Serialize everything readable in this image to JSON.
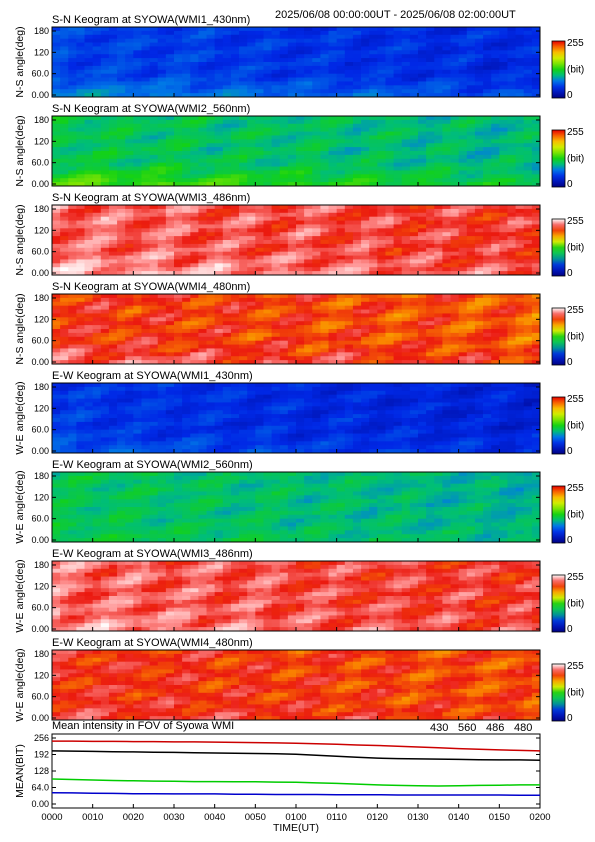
{
  "header": {
    "time_range": "2025/06/08 00:00:00UT - 2025/06/08 02:00:00UT"
  },
  "colorbar": {
    "max_label": "255",
    "unit_label": "(bit)",
    "min_label": "0"
  },
  "keograms": [
    {
      "title": "S-N Keogram at SYOWA(WMI1_430nm)",
      "ylabel": "N-S angle(deg)",
      "ramp": "rainbow",
      "base": 0.22,
      "spread": 0.05,
      "low_boost": 0.12
    },
    {
      "title": "S-N Keogram at SYOWA(WMI2_560nm)",
      "ylabel": "N-S angle(deg)",
      "ramp": "rainbow",
      "base": 0.44,
      "spread": 0.06,
      "low_boost": 0.14
    },
    {
      "title": "S-N Keogram at SYOWA(WMI3_486nm)",
      "ylabel": "N-S angle(deg)",
      "ramp": "hot",
      "base": 0.9,
      "spread": 0.07,
      "low_boost": 0.06
    },
    {
      "title": "S-N Keogram at SYOWA(WMI4_480nm)",
      "ylabel": "N-S angle(deg)",
      "ramp": "hot",
      "base": 0.83,
      "spread": 0.08,
      "low_boost": 0.08
    },
    {
      "title": "E-W Keogram at SYOWA(WMI1_430nm)",
      "ylabel": "W-E angle(deg)",
      "ramp": "rainbow",
      "base": 0.2,
      "spread": 0.05,
      "low_boost": 0.06
    },
    {
      "title": "E-W Keogram at SYOWA(WMI2_560nm)",
      "ylabel": "W-E angle(deg)",
      "ramp": "rainbow",
      "base": 0.43,
      "spread": 0.05,
      "low_boost": 0.03
    },
    {
      "title": "E-W Keogram at SYOWA(WMI3_486nm)",
      "ylabel": "W-E angle(deg)",
      "ramp": "hot",
      "base": 0.9,
      "spread": 0.07,
      "low_boost": 0.04
    },
    {
      "title": "E-W Keogram at SYOWA(WMI4_480nm)",
      "ylabel": "W-E angle(deg)",
      "ramp": "hot",
      "base": 0.84,
      "spread": 0.07,
      "low_boost": 0.04
    }
  ],
  "chart_data": {
    "type": "line",
    "title": "Mean intensity in FOV of Syowa WMI",
    "ylabel": "MEAN(BIT)",
    "xlabel": "TIME(UT)",
    "ylim": [
      0,
      256
    ],
    "y_ticks": [
      "0.00",
      "64.0",
      "128",
      "192",
      "256"
    ],
    "x": [
      "0000",
      "0005",
      "0010",
      "0015",
      "0020",
      "0025",
      "0030",
      "0035",
      "0040",
      "0045",
      "0050",
      "0055",
      "0100",
      "0105",
      "0110",
      "0115",
      "0120",
      "0125",
      "0130",
      "0135",
      "0140",
      "0145",
      "0150",
      "0155",
      "0200"
    ],
    "x_ticks": [
      "0000",
      "0010",
      "0020",
      "0030",
      "0040",
      "0050",
      "0100",
      "0110",
      "0120",
      "0130",
      "0140",
      "0150",
      "0200"
    ],
    "series": [
      {
        "name": "430",
        "color": "#0000cc",
        "values": [
          44,
          43,
          42,
          41,
          40,
          40,
          39,
          39,
          39,
          38,
          38,
          37,
          37,
          37,
          36,
          36,
          36,
          35,
          35,
          35,
          35,
          35,
          35,
          34,
          34
        ]
      },
      {
        "name": "560",
        "color": "#00cc00",
        "values": [
          97,
          95,
          93,
          91,
          90,
          89,
          88,
          87,
          87,
          86,
          86,
          85,
          84,
          82,
          80,
          77,
          74,
          72,
          71,
          70,
          71,
          72,
          73,
          74,
          74
        ]
      },
      {
        "name": "486",
        "color": "#cc0000",
        "values": [
          244,
          244,
          243,
          243,
          242,
          242,
          241,
          241,
          240,
          239,
          238,
          237,
          236,
          234,
          232,
          229,
          227,
          224,
          221,
          218,
          215,
          212,
          210,
          208,
          206
        ]
      },
      {
        "name": "480",
        "color": "#000000",
        "values": [
          206,
          205,
          204,
          203,
          202,
          201,
          200,
          199,
          198,
          197,
          196,
          195,
          193,
          189,
          185,
          181,
          178,
          176,
          175,
          174,
          173,
          172,
          171,
          171,
          170
        ]
      }
    ]
  },
  "keogram_axis": {
    "y_ticks": [
      "0.00",
      "60.0",
      "120",
      "180"
    ]
  }
}
